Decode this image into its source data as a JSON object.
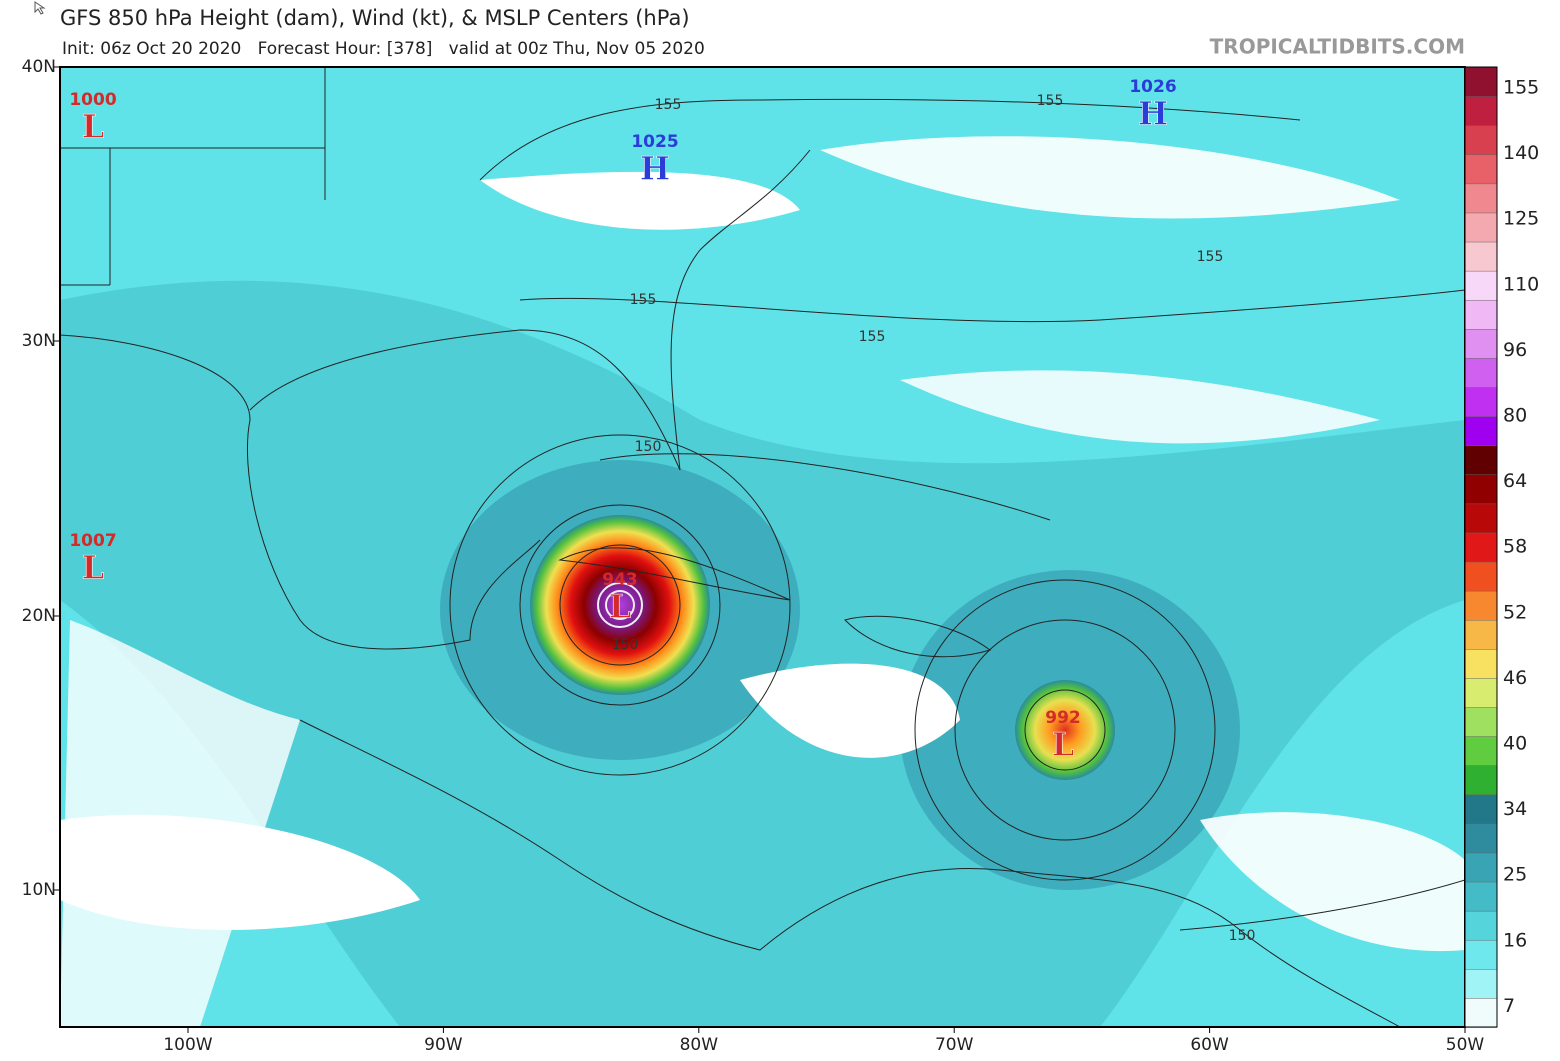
{
  "header": {
    "title": "GFS 850 hPa Height (dam), Wind (kt), & MSLP Centers (hPa)",
    "subtitle": "Init: 06z Oct 20 2020   Forecast Hour: [378]   valid at 00z Thu, Nov 05 2020",
    "credit": "TROPICALTIDBITS.COM"
  },
  "axes": {
    "lat": [
      "40N",
      "30N",
      "20N",
      "10N"
    ],
    "lon": [
      "100W",
      "90W",
      "80W",
      "70W",
      "60W",
      "50W"
    ]
  },
  "colorbar": {
    "labels": [
      155,
      140,
      125,
      110,
      96,
      80,
      64,
      58,
      52,
      46,
      40,
      34,
      25,
      16,
      7
    ]
  },
  "centers": [
    {
      "pressure": "1000",
      "symbol": "L"
    },
    {
      "pressure": "1007",
      "symbol": "L"
    },
    {
      "pressure": "1025",
      "symbol": "H"
    },
    {
      "pressure": "1026",
      "symbol": "H"
    },
    {
      "pressure": "943",
      "symbol": "L"
    },
    {
      "pressure": "992",
      "symbol": "L"
    }
  ],
  "contour_labels": [
    155,
    155,
    155,
    155,
    155,
    150,
    150,
    150
  ]
}
